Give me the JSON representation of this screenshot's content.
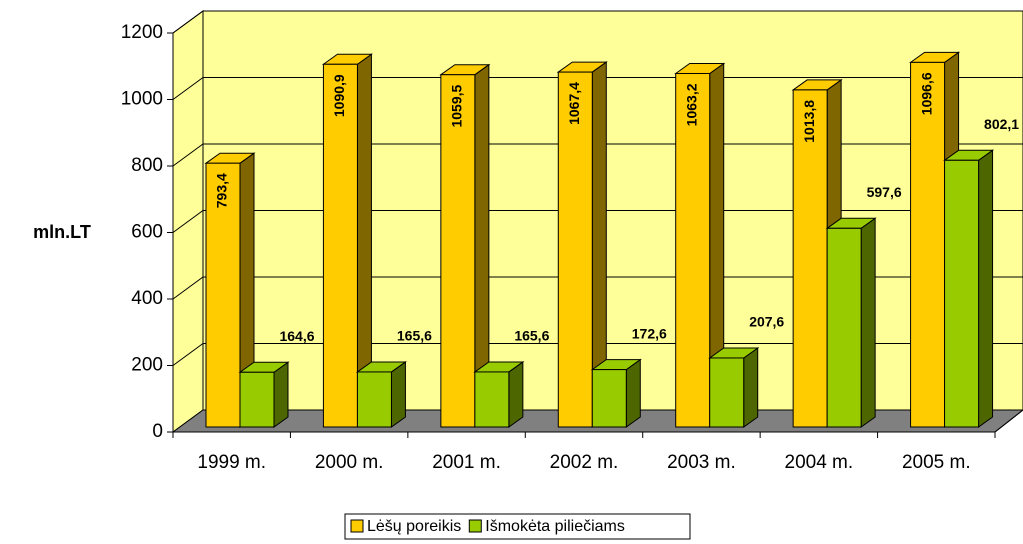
{
  "chart_data": {
    "type": "bar3d",
    "y_label": "mln.LT",
    "categories": [
      "1999 m.",
      "2000 m.",
      "2001 m.",
      "2002 m.",
      "2003 m.",
      "2004 m.",
      "2005 m."
    ],
    "series": [
      {
        "name": "Lėšų poreikis",
        "color": "#FFCC00",
        "side": "#806600",
        "values": [
          793.4,
          1090.9,
          1059.5,
          1067.4,
          1063.2,
          1013.8,
          1096.6
        ],
        "value_labels": [
          "793,4",
          "1090,9",
          "1059,5",
          "1067,4",
          "1063,2",
          "1013,8",
          "1096,6"
        ]
      },
      {
        "name": "Išmokėta piliečiams",
        "color": "#99CC00",
        "side": "#4D6600",
        "values": [
          164.6,
          165.6,
          165.6,
          172.6,
          207.6,
          597.6,
          802.1
        ],
        "value_labels": [
          "164,6",
          "165,6",
          "165,6",
          "172,6",
          "207,6",
          "597,6",
          "802,1"
        ]
      }
    ],
    "ylim": [
      0,
      1200
    ],
    "yticks": [
      0,
      200,
      400,
      600,
      800,
      1000,
      1200
    ],
    "grid": true,
    "wall_color": "#FFFF99",
    "floor_color": "#808080",
    "legend": "bottom"
  }
}
